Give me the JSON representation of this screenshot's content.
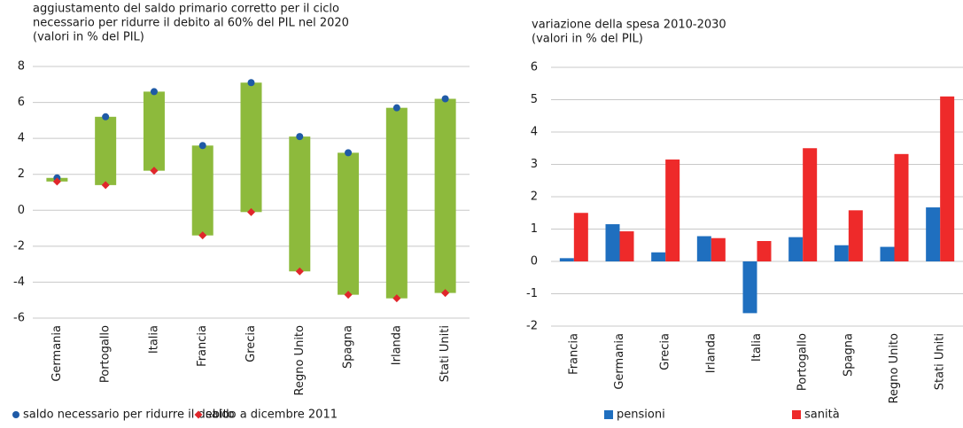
{
  "chart_data": [
    {
      "type": "range",
      "title": [
        "aggiustamento del saldo primario corretto per il ciclo",
        "necessario per ridurre il debito al 60% del PIL nel 2020"
      ],
      "subtitle": "(valori in % del PIL)",
      "categories": [
        "Germania",
        "Portogallo",
        "Italia",
        "Francia",
        "Grecia",
        "Regno Unito",
        "Spagna",
        "Irlanda",
        "Stati Uniti"
      ],
      "range_color": "#8dba3c",
      "series": [
        {
          "name": "saldo necessario per ridurre il debito",
          "color": "#1f5aa6",
          "marker": "circle",
          "values": [
            1.8,
            5.2,
            6.6,
            3.6,
            7.1,
            4.1,
            3.2,
            5.7,
            6.2
          ]
        },
        {
          "name": "saldo a dicembre 2011",
          "color": "#e0262b",
          "marker": "diamond",
          "values": [
            1.6,
            1.4,
            2.2,
            -1.4,
            -0.1,
            -3.4,
            -4.7,
            -4.9,
            -4.6
          ]
        }
      ],
      "ylim": [
        -6,
        8
      ],
      "yticks": [
        -6,
        -4,
        -2,
        0,
        2,
        4,
        6,
        8
      ],
      "grid": true
    },
    {
      "type": "bar",
      "title": [
        "variazione della spesa 2010-2030"
      ],
      "subtitle": "(valori in % del PIL)",
      "categories": [
        "Francia",
        "Germania",
        "Grecia",
        "Irlanda",
        "Italia",
        "Portogallo",
        "Spagna",
        "Regno Unito",
        "Stati Uniti"
      ],
      "series": [
        {
          "name": "pensioni",
          "color": "#1f6fbf",
          "values": [
            0.1,
            1.15,
            0.28,
            0.78,
            -1.6,
            0.75,
            0.5,
            0.45,
            1.67
          ]
        },
        {
          "name": "sanità",
          "color": "#ee2a2a",
          "values": [
            1.5,
            0.93,
            3.15,
            0.72,
            0.63,
            3.5,
            1.58,
            3.32,
            5.1
          ]
        }
      ],
      "ylim": [
        -2,
        6
      ],
      "yticks": [
        -2,
        -1,
        0,
        1,
        2,
        3,
        4,
        5,
        6
      ],
      "grid": true
    }
  ]
}
